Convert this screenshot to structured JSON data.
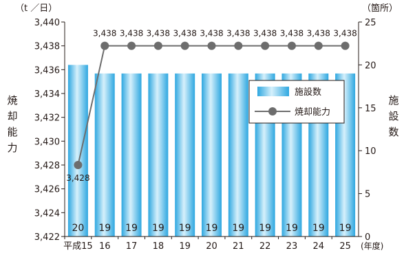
{
  "chart_data": {
    "type": "bar+line",
    "left_axis_unit": "（t ／日）",
    "right_axis_unit": "（箇所）",
    "x_unit": "(年度)",
    "ylabel_left": [
      "焼",
      "却",
      "能",
      "力"
    ],
    "ylabel_right": [
      "施",
      "設",
      "数"
    ],
    "categories": [
      "平成15",
      "16",
      "17",
      "18",
      "19",
      "20",
      "21",
      "22",
      "23",
      "24",
      "25"
    ],
    "ylim_left": [
      3422,
      3440
    ],
    "yticks_left": [
      "3,422",
      "3,424",
      "3,426",
      "3,428",
      "3,430",
      "3,432",
      "3,434",
      "3,436",
      "3,438",
      "3,440"
    ],
    "ylim_right": [
      0,
      25
    ],
    "yticks_right": [
      "0",
      "5",
      "10",
      "15",
      "20",
      "25"
    ],
    "series": [
      {
        "name": "施設数",
        "type": "bar",
        "axis": "right",
        "values": [
          20,
          19,
          19,
          19,
          19,
          19,
          19,
          19,
          19,
          19,
          19
        ],
        "labels": [
          "20",
          "19",
          "19",
          "19",
          "19",
          "19",
          "19",
          "19",
          "19",
          "19",
          "19"
        ],
        "color": "#4fb8e8"
      },
      {
        "name": "焼却能力",
        "type": "line",
        "axis": "left",
        "values": [
          3428,
          3438,
          3438,
          3438,
          3438,
          3438,
          3438,
          3438,
          3438,
          3438,
          3438
        ],
        "labels": [
          "3,428",
          "3,438",
          "3,438",
          "3,438",
          "3,438",
          "3,438",
          "3,438",
          "3,438",
          "3,438",
          "3,438",
          "3,438"
        ],
        "color": "#6d6d6d"
      }
    ],
    "legend_position": "right-middle",
    "grid": false
  }
}
